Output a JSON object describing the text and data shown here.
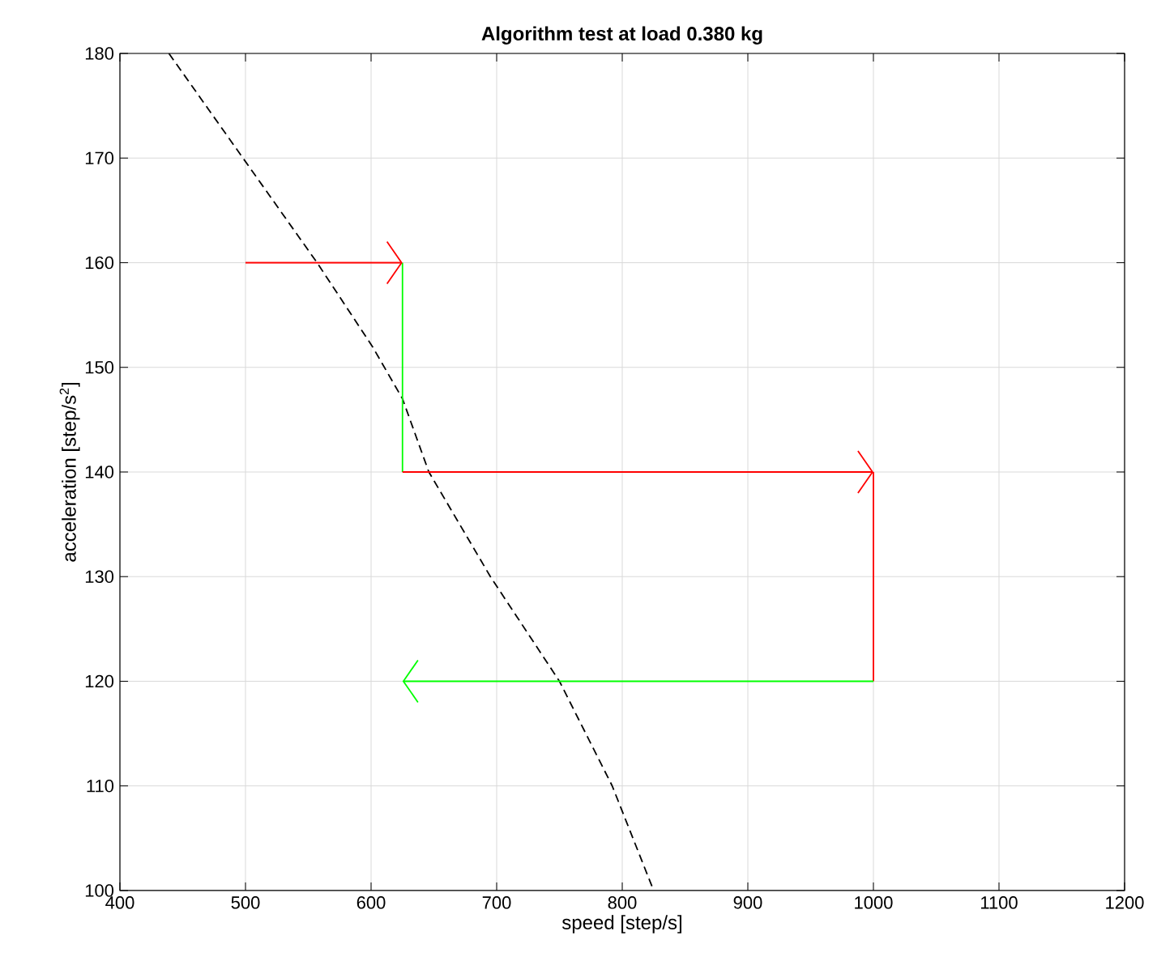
{
  "chart_data": {
    "type": "line",
    "title": "Algorithm test at load 0.380 kg",
    "xlabel": "speed [step/s]",
    "ylabel": "acceleration [step/s$^{2}$]",
    "xlim": [
      400,
      1200
    ],
    "ylim": [
      100,
      180
    ],
    "xticks": [
      400,
      500,
      600,
      700,
      800,
      900,
      1000,
      1100,
      1200
    ],
    "yticks": [
      100,
      110,
      120,
      130,
      140,
      150,
      160,
      170,
      180
    ],
    "grid": true,
    "series": [
      {
        "color": "#000000",
        "line_style": "dashed",
        "x": [
          439,
          557,
          601,
          625,
          646,
          695,
          750,
          792,
          825
        ],
        "values": [
          180,
          160,
          152,
          147,
          140,
          130,
          120,
          110,
          100
        ]
      },
      {
        "color": "#ff0000",
        "x": [
          500,
          625
        ],
        "values": [
          160,
          160
        ]
      },
      {
        "color": "#00ff00",
        "x": [
          625,
          625
        ],
        "values": [
          160,
          140
        ]
      },
      {
        "color": "#ff0000",
        "x": [
          625,
          1000
        ],
        "values": [
          140,
          140
        ]
      },
      {
        "color": "#ff0000",
        "x": [
          1000,
          1000
        ],
        "values": [
          140,
          120
        ]
      },
      {
        "color": "#00ff00",
        "x": [
          1000,
          625
        ],
        "values": [
          120,
          120
        ]
      }
    ]
  }
}
